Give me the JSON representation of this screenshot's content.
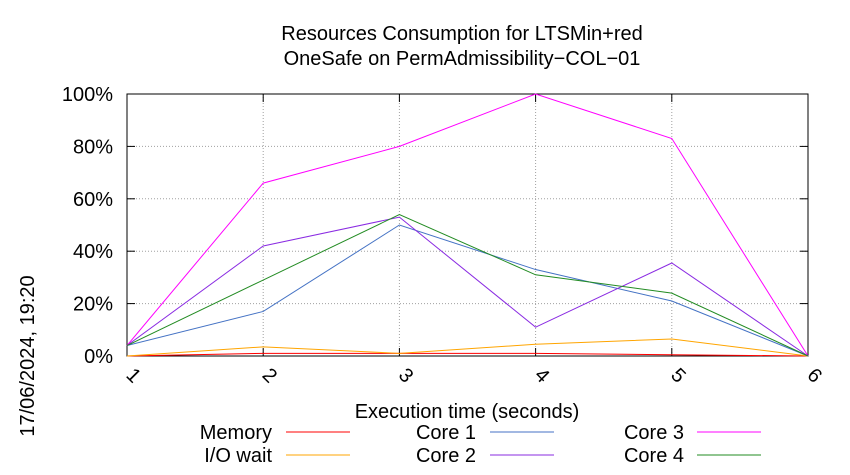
{
  "chart_data": {
    "type": "line",
    "title_lines": [
      "Resources Consumption for LTSMin+red",
      "OneSafe on PermAdmissibility−COL−01"
    ],
    "xlabel": "Execution time (seconds)",
    "ylabel": "",
    "x": [
      1,
      2,
      3,
      4,
      5,
      6
    ],
    "xlim": [
      1,
      6
    ],
    "ylim": [
      0,
      100
    ],
    "x_tick_labels": [
      "1",
      "2",
      "3",
      "4",
      "5",
      "6"
    ],
    "y_tick_labels": [
      "0%",
      "20%",
      "40%",
      "60%",
      "80%",
      "100%"
    ],
    "y_ticks": [
      0,
      20,
      40,
      60,
      80,
      100
    ],
    "grid": true,
    "legend_placement": "bottom",
    "series": [
      {
        "name": "Memory",
        "color": "#ff0000",
        "values": [
          0,
          1,
          1,
          1,
          0.5,
          0
        ]
      },
      {
        "name": "I/O wait",
        "color": "#ffa500",
        "values": [
          0,
          3.5,
          1,
          4.5,
          6.5,
          0
        ]
      },
      {
        "name": "Core 1",
        "color": "#4472c4",
        "values": [
          4,
          17,
          50,
          33,
          21,
          0
        ]
      },
      {
        "name": "Core 2",
        "color": "#8a2be2",
        "values": [
          4,
          42,
          53,
          11,
          35.5,
          0
        ]
      },
      {
        "name": "Core 3",
        "color": "#ff00ff",
        "values": [
          4,
          66,
          80,
          100,
          83,
          0
        ]
      },
      {
        "name": "Core 4",
        "color": "#228b22",
        "values": [
          4,
          29,
          54,
          31,
          24,
          0
        ]
      }
    ]
  },
  "timestamp": "17/06/2024, 19:20"
}
